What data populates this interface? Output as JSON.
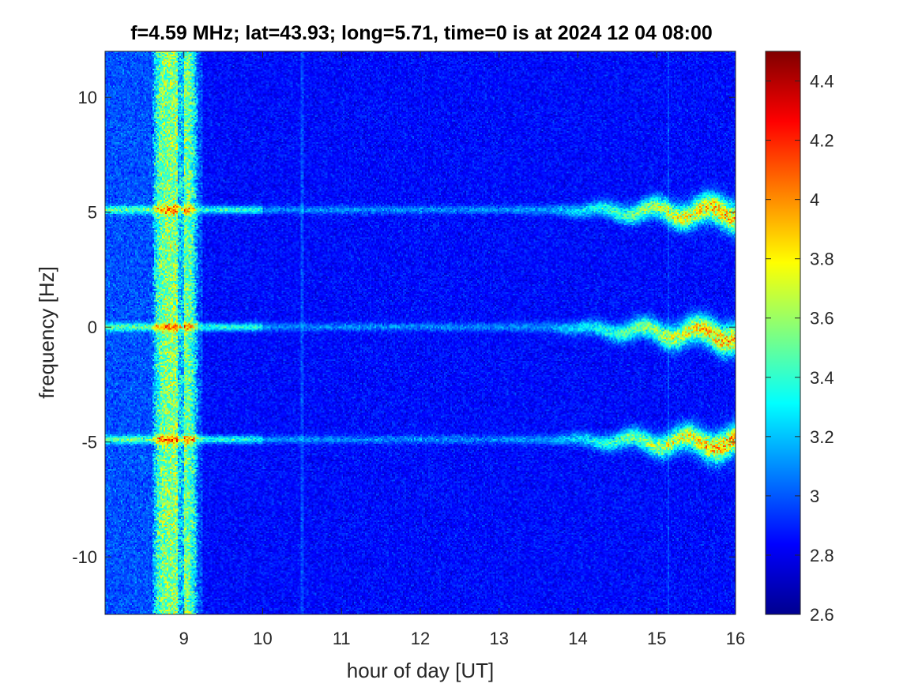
{
  "chart_data": {
    "type": "heatmap",
    "title": "f=4.59 MHz;  lat=43.93; long=5.71, time=0 is at 2024 12 04 08:00",
    "xlabel": "hour of day [UT]",
    "ylabel": "frequency [Hz]",
    "xlim": [
      8.0,
      16.0
    ],
    "ylim": [
      -12.5,
      12.0
    ],
    "xticks": [
      9,
      10,
      11,
      12,
      13,
      14,
      15,
      16
    ],
    "yticks": [
      10,
      5,
      0,
      -5,
      -10
    ],
    "xtick_labels": [
      "9",
      "10",
      "11",
      "12",
      "13",
      "14",
      "15",
      "16"
    ],
    "ytick_labels": [
      "10",
      "5",
      "0",
      "-5",
      "-10"
    ],
    "colorbar": {
      "clim": [
        2.6,
        4.5
      ],
      "ticks": [
        2.6,
        2.8,
        3.0,
        3.2,
        3.4,
        3.6,
        3.8,
        4.0,
        4.2,
        4.4
      ],
      "tick_labels": [
        "2.6",
        "2.8",
        "3",
        "3.2",
        "3.4",
        "3.6",
        "3.8",
        "4",
        "4.2",
        "4.4"
      ],
      "colormap": "jet"
    },
    "background_level": 2.75,
    "features": {
      "broadband_band_hours": [
        8.6,
        9.18
      ],
      "spectral_lines_hz": [
        5.1,
        0.0,
        -4.9
      ],
      "line_wander_start_hour": 13.6
    },
    "grid": false
  }
}
